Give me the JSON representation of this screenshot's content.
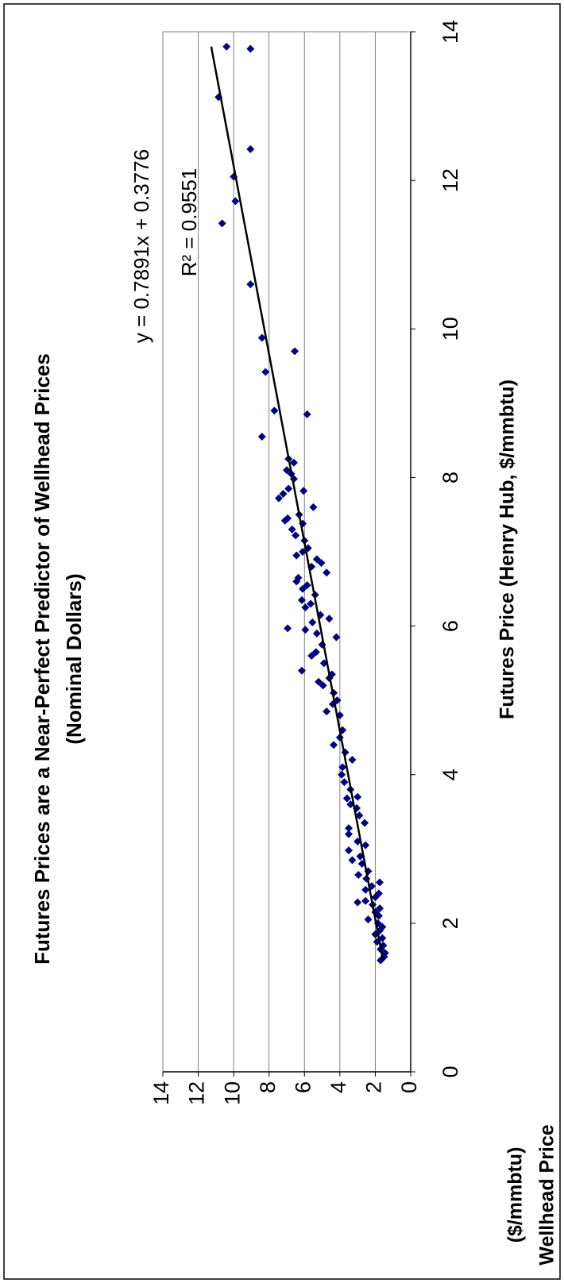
{
  "chart_data": {
    "type": "scatter",
    "title": "Futures Prices are a Near-Perfect Predictor of Wellhead Prices",
    "subtitle": "(Nominal Dollars)",
    "x_label": "Futures Price (Henry Hub, $/mmbtu)",
    "y_label": [
      "Wellhead Price",
      "($/mmbtu)"
    ],
    "trendline": {
      "equation": "y = 0.7891x + 0.3776",
      "slope": 0.7891,
      "intercept": 0.3776,
      "r2_label": "R² = 0.9551"
    },
    "color": "#000080",
    "trend_color": "#000000",
    "grid": true,
    "xlim": [
      0,
      14
    ],
    "ylim": [
      0,
      14
    ],
    "xticks": [
      0,
      2,
      4,
      6,
      8,
      10,
      12,
      14
    ],
    "yticks": [
      0,
      2,
      4,
      6,
      8,
      10,
      12,
      14
    ],
    "x": [
      13.8,
      13.77,
      13.12,
      12.42,
      12.05,
      11.72,
      11.42,
      10.6,
      9.88,
      9.7,
      9.42,
      8.9,
      8.85,
      8.55,
      8.25,
      8.2,
      8.1,
      8.05,
      7.98,
      7.85,
      7.82,
      7.78,
      7.72,
      7.6,
      7.5,
      7.45,
      7.42,
      7.38,
      7.3,
      7.22,
      7.15,
      7.05,
      7.0,
      6.95,
      6.9,
      6.85,
      6.8,
      6.72,
      6.65,
      6.6,
      6.55,
      6.5,
      6.42,
      6.35,
      6.3,
      6.25,
      6.15,
      6.1,
      6.05,
      5.97,
      5.95,
      5.9,
      5.85,
      5.75,
      5.65,
      5.6,
      5.5,
      5.4,
      5.35,
      5.3,
      5.25,
      5.2,
      5.1,
      5.0,
      4.95,
      4.85,
      4.8,
      4.6,
      4.5,
      4.4,
      4.3,
      4.2,
      4.1,
      4.0,
      3.9,
      3.8,
      3.7,
      3.68,
      3.6,
      3.55,
      3.45,
      3.35,
      3.28,
      3.2,
      3.1,
      3.05,
      2.98,
      2.9,
      2.85,
      2.8,
      2.7,
      2.65,
      2.6,
      2.55,
      2.5,
      2.45,
      2.4,
      2.35,
      2.3,
      2.28,
      2.25,
      2.2,
      2.15,
      2.1,
      2.05,
      2.0,
      1.95,
      1.9,
      1.85,
      1.8,
      1.75,
      1.7,
      1.65,
      1.6,
      1.55,
      1.5
    ],
    "y": [
      10.4,
      9.05,
      10.85,
      9.05,
      10.0,
      9.9,
      10.65,
      9.05,
      8.4,
      6.55,
      8.2,
      7.7,
      5.85,
      8.4,
      6.9,
      6.6,
      7.0,
      6.75,
      6.6,
      6.9,
      6.05,
      7.2,
      7.45,
      5.5,
      6.3,
      6.95,
      7.1,
      6.1,
      6.7,
      6.5,
      6.0,
      5.8,
      6.1,
      6.45,
      5.3,
      5.05,
      5.6,
      4.75,
      6.35,
      6.45,
      5.85,
      6.1,
      5.4,
      6.15,
      5.65,
      5.95,
      5.1,
      4.6,
      5.55,
      6.95,
      5.95,
      5.3,
      4.2,
      5.0,
      5.35,
      5.6,
      4.9,
      6.15,
      4.45,
      4.6,
      5.2,
      4.95,
      4.35,
      4.15,
      4.4,
      4.75,
      4.0,
      3.85,
      4.0,
      4.35,
      3.7,
      3.3,
      3.85,
      3.9,
      3.75,
      3.4,
      3.0,
      3.6,
      3.4,
      3.05,
      2.9,
      2.6,
      3.5,
      3.5,
      3.0,
      2.55,
      3.5,
      2.85,
      3.3,
      2.75,
      2.4,
      2.95,
      2.5,
      1.75,
      2.2,
      2.55,
      1.8,
      2.0,
      2.55,
      3.0,
      2.15,
      1.75,
      2.0,
      1.8,
      2.4,
      1.85,
      1.6,
      1.75,
      2.0,
      1.6,
      1.9,
      1.55,
      1.7,
      1.45,
      1.5,
      1.7
    ]
  }
}
